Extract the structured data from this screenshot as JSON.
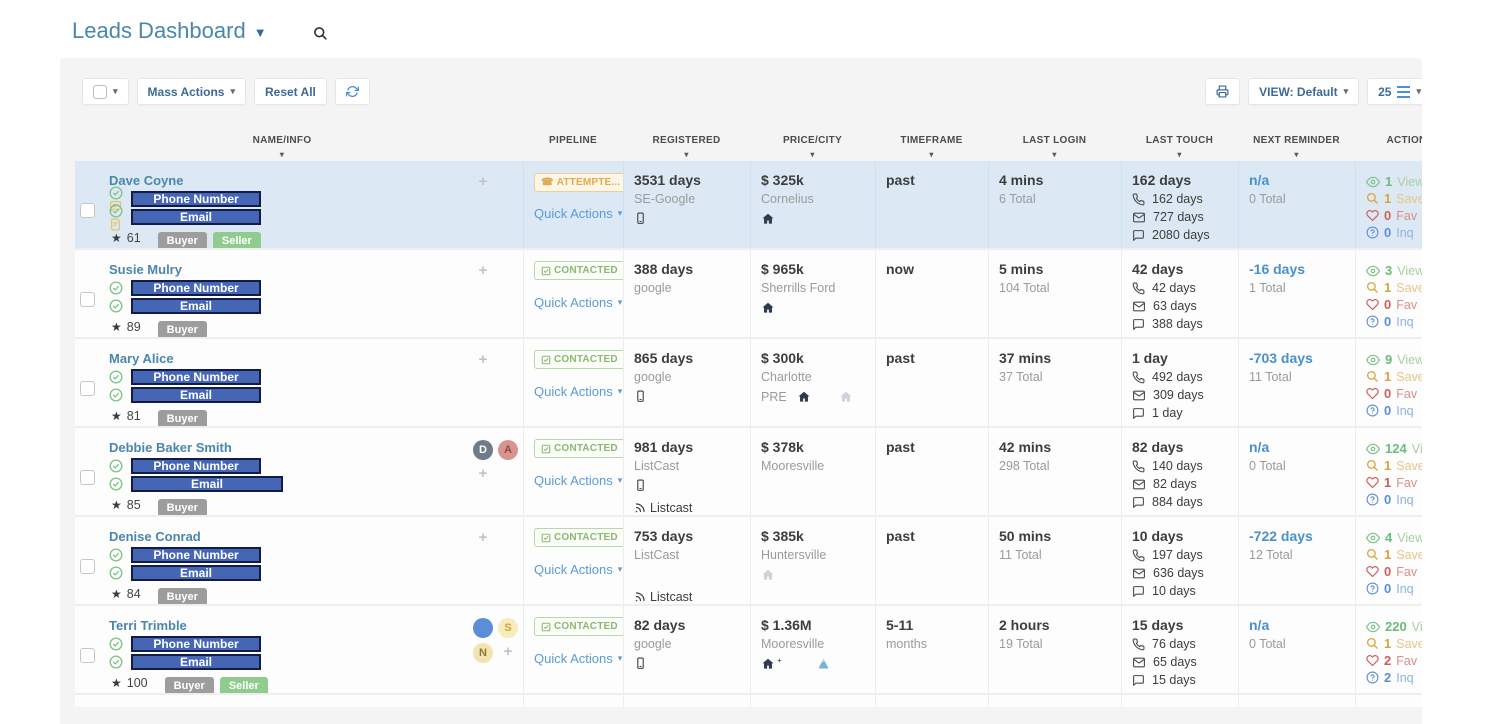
{
  "page": {
    "title": "Leads Dashboard"
  },
  "toolbar": {
    "mass_actions_label": "Mass Actions",
    "reset_all_label": "Reset All",
    "view_label": "VIEW: Default",
    "page_size": "25"
  },
  "table": {
    "columns": [
      {
        "label": "NAME/INFO",
        "sortable": true
      },
      {
        "label": "PIPELINE",
        "sortable": false
      },
      {
        "label": "REGISTERED",
        "sortable": true
      },
      {
        "label": "PRICE/CITY",
        "sortable": true
      },
      {
        "label": "TIMEFRAME",
        "sortable": true
      },
      {
        "label": "LAST LOGIN",
        "sortable": true
      },
      {
        "label": "LAST TOUCH",
        "sortable": true
      },
      {
        "label": "NEXT REMINDER",
        "sortable": true
      },
      {
        "label": "ACTIONS",
        "sortable": false
      }
    ],
    "quick_actions_label": "Quick Actions",
    "action_labels": {
      "views": "Views",
      "saved": "Saved",
      "fav": "Fav",
      "inq": "Inq"
    },
    "rows": [
      {
        "name": "Dave Coyne",
        "selected": true,
        "phone_placeholder": "Phone Number",
        "email_placeholder": "Email",
        "phone_flags": [
          "check",
          "sms"
        ],
        "email_flags": [
          "check",
          "note"
        ],
        "rating": "61",
        "badges": [
          "Buyer",
          "Seller"
        ],
        "avatars": [],
        "plus": true,
        "pipeline": {
          "status": "ATTEMPTE...",
          "type": "attempted"
        },
        "registered": {
          "days": "3531 days",
          "source": "SE-Google",
          "mobile": true,
          "listcast_label": ""
        },
        "price": {
          "amount": "$ 325k",
          "city": "Cornelius",
          "pre": "",
          "house": true,
          "house_plus": "",
          "house_gray": false,
          "mountain": false
        },
        "timeframe": {
          "main": "past",
          "sub": ""
        },
        "last_login": {
          "main": "4 mins",
          "total": "6 Total"
        },
        "last_touch": {
          "main": "162 days",
          "phone": "162 days",
          "email": "727 days",
          "chat": "2080 days"
        },
        "next_reminder": {
          "main": "n/a",
          "total": "0 Total"
        },
        "actions": {
          "views": "1",
          "saved": "1",
          "fav": "0",
          "inq": "0"
        }
      },
      {
        "name": "Susie Mulry",
        "selected": false,
        "phone_placeholder": "Phone Number",
        "email_placeholder": "Email",
        "phone_flags": [
          "check"
        ],
        "email_flags": [
          "check"
        ],
        "rating": "89",
        "badges": [
          "Buyer"
        ],
        "avatars": [],
        "plus": true,
        "pipeline": {
          "status": "CONTACTED",
          "type": "contacted"
        },
        "registered": {
          "days": "388 days",
          "source": "google",
          "mobile": false,
          "listcast_label": ""
        },
        "price": {
          "amount": "$ 965k",
          "city": "Sherrills Ford",
          "pre": "",
          "house": true,
          "house_plus": "",
          "house_gray": false,
          "mountain": false
        },
        "timeframe": {
          "main": "now",
          "sub": ""
        },
        "last_login": {
          "main": "5 mins",
          "total": "104 Total"
        },
        "last_touch": {
          "main": "42 days",
          "phone": "42 days",
          "email": "63 days",
          "chat": "388 days"
        },
        "next_reminder": {
          "main": "-16 days",
          "total": "1 Total"
        },
        "actions": {
          "views": "3",
          "saved": "1",
          "fav": "0",
          "inq": "0"
        }
      },
      {
        "name": "Mary Alice",
        "selected": false,
        "phone_placeholder": "Phone Number",
        "email_placeholder": "Email",
        "phone_flags": [
          "check"
        ],
        "email_flags": [
          "check"
        ],
        "rating": "81",
        "badges": [
          "Buyer"
        ],
        "avatars": [],
        "plus": true,
        "pipeline": {
          "status": "CONTACTED",
          "type": "contacted"
        },
        "registered": {
          "days": "865 days",
          "source": "google",
          "mobile": true,
          "listcast_label": ""
        },
        "price": {
          "amount": "$ 300k",
          "city": "Charlotte",
          "pre": "PRE",
          "house": true,
          "house_plus": "",
          "house_gray": true,
          "mountain": false
        },
        "timeframe": {
          "main": "past",
          "sub": ""
        },
        "last_login": {
          "main": "37 mins",
          "total": "37 Total"
        },
        "last_touch": {
          "main": "1 day",
          "phone": "492 days",
          "email": "309 days",
          "chat": "1 day"
        },
        "next_reminder": {
          "main": "-703 days",
          "total": "11 Total"
        },
        "actions": {
          "views": "9",
          "saved": "1",
          "fav": "0",
          "inq": "0"
        }
      },
      {
        "name": "Debbie Baker Smith",
        "selected": false,
        "email_wide": true,
        "phone_placeholder": "Phone Number",
        "email_placeholder": "Email",
        "phone_flags": [
          "check"
        ],
        "email_flags": [
          "check"
        ],
        "rating": "85",
        "badges": [
          "Buyer"
        ],
        "avatars": [
          {
            "label": "D",
            "bg": "#6e7b88",
            "fg": "#ffffff"
          },
          {
            "label": "A",
            "bg": "#d99490",
            "fg": "#8c4a47"
          }
        ],
        "plus": true,
        "pipeline": {
          "status": "CONTACTED",
          "type": "contacted"
        },
        "registered": {
          "days": "981 days",
          "source": "ListCast",
          "mobile": true,
          "listcast_label": "Listcast"
        },
        "price": {
          "amount": "$ 378k",
          "city": "Mooresville",
          "pre": "",
          "house": false,
          "house_plus": "",
          "house_gray": false,
          "mountain": false
        },
        "timeframe": {
          "main": "past",
          "sub": ""
        },
        "last_login": {
          "main": "42 mins",
          "total": "298 Total"
        },
        "last_touch": {
          "main": "82 days",
          "phone": "140 days",
          "email": "82 days",
          "chat": "884 days"
        },
        "next_reminder": {
          "main": "n/a",
          "total": "0 Total"
        },
        "actions": {
          "views": "124",
          "saved": "1",
          "fav": "1",
          "inq": "0"
        }
      },
      {
        "name": "Denise Conrad",
        "selected": false,
        "phone_placeholder": "Phone Number",
        "email_placeholder": "Email",
        "phone_flags": [
          "check"
        ],
        "email_flags": [
          "check"
        ],
        "rating": "84",
        "badges": [
          "Buyer"
        ],
        "avatars": [],
        "plus": true,
        "pipeline": {
          "status": "CONTACTED",
          "type": "contacted"
        },
        "registered": {
          "days": "753 days",
          "source": "ListCast",
          "mobile": false,
          "listcast_label": "Listcast"
        },
        "price": {
          "amount": "$ 385k",
          "city": "Huntersville",
          "pre": "",
          "house": false,
          "house_plus": "",
          "house_gray": true,
          "mountain": false
        },
        "timeframe": {
          "main": "past",
          "sub": ""
        },
        "last_login": {
          "main": "50 mins",
          "total": "11 Total"
        },
        "last_touch": {
          "main": "10 days",
          "phone": "197 days",
          "email": "636 days",
          "chat": "10 days"
        },
        "next_reminder": {
          "main": "-722 days",
          "total": "12 Total"
        },
        "actions": {
          "views": "4",
          "saved": "1",
          "fav": "0",
          "inq": "0"
        }
      },
      {
        "name": "Terri Trimble",
        "selected": false,
        "phone_placeholder": "Phone Number",
        "email_placeholder": "Email",
        "phone_flags": [
          "check"
        ],
        "email_flags": [
          "check"
        ],
        "rating": "100",
        "badges": [
          "Buyer",
          "Seller"
        ],
        "avatars": [
          {
            "label": "",
            "bg": "#5b8ed8",
            "fg": "#ffffff"
          },
          {
            "label": "S",
            "bg": "#f7ecbc",
            "fg": "#c9a53f"
          },
          {
            "label": "N",
            "bg": "#f3e3ae",
            "fg": "#8a7a3a"
          }
        ],
        "plus": true,
        "pipeline": {
          "status": "CONTACTED",
          "type": "contacted"
        },
        "registered": {
          "days": "82 days",
          "source": "google",
          "mobile": true,
          "listcast_label": ""
        },
        "price": {
          "amount": "$ 1.36M",
          "city": "Mooresville",
          "pre": "",
          "house": true,
          "house_plus": "+",
          "house_gray": false,
          "mountain": true
        },
        "timeframe": {
          "main": "5-11",
          "sub": "months"
        },
        "last_login": {
          "main": "2 hours",
          "total": "19 Total"
        },
        "last_touch": {
          "main": "15 days",
          "phone": "76 days",
          "email": "65 days",
          "chat": "15 days"
        },
        "next_reminder": {
          "main": "n/a",
          "total": "0 Total"
        },
        "actions": {
          "views": "220",
          "saved": "1",
          "fav": "2",
          "inq": "2"
        }
      }
    ]
  },
  "colors": {
    "title_blue": "#4a86ad",
    "link_blue": "#5b9bd5",
    "button_text_blue": "#3e6a96",
    "selected_row": "#dce9f5",
    "panel_bg": "#f4f4f4",
    "redaction_fill": "#4566b4",
    "redaction_border": "#141b45",
    "badge_buyer": "#9d9d9d",
    "badge_seller": "#90cc8e",
    "status_attempted": "#e2aa4e",
    "status_contacted": "#8cb873",
    "views_green": "#69bd7a",
    "saved_orange": "#d8a43c",
    "fav_red": "#cd5f5c",
    "inq_blue": "#5c8fd0",
    "reminder_blue": "#4a90c9"
  }
}
